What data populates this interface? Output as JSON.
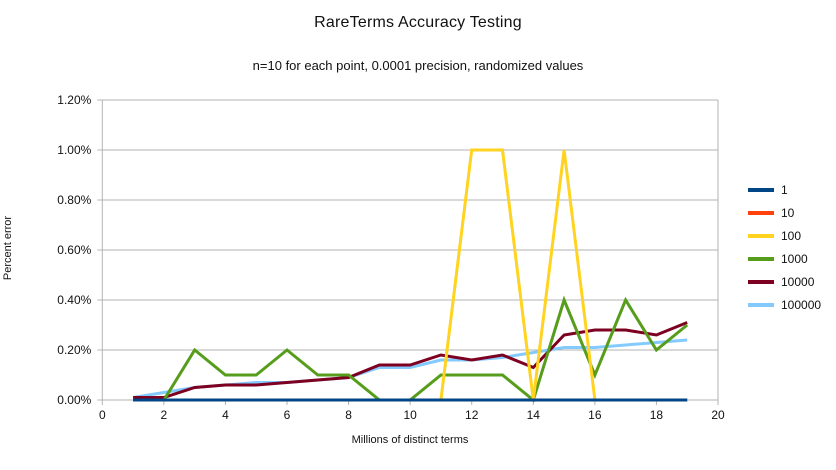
{
  "chart": {
    "title": "RareTerms Accuracy Testing",
    "subtitle": "n=10 for each point, 0.0001 precision, randomized values",
    "x_axis_title": "Millions of distinct terms",
    "y_axis_title": "Percent error"
  },
  "chart_data": {
    "type": "line",
    "title": "RareTerms Accuracy Testing",
    "subtitle": "n=10 for each point, 0.0001 precision, randomized values",
    "xlabel": "Millions of distinct terms",
    "ylabel": "Percent error",
    "xlim": [
      0,
      20
    ],
    "ylim_percent": [
      0,
      1.2
    ],
    "x_tick_labels": [
      0,
      2,
      4,
      6,
      8,
      10,
      12,
      14,
      16,
      18,
      20
    ],
    "y_tick_labels": [
      "0.00%",
      "0.20%",
      "0.40%",
      "0.60%",
      "0.80%",
      "1.00%",
      "1.20%"
    ],
    "y_tick_step_percent": 0.2,
    "grid": true,
    "legend_position": "right",
    "draw_order": "first-series-on-top",
    "x": [
      1,
      2,
      3,
      4,
      5,
      6,
      7,
      8,
      9,
      10,
      11,
      12,
      13,
      14,
      15,
      16,
      17,
      18,
      19
    ],
    "series": [
      {
        "name": "1",
        "color": "#004586",
        "values_percent": [
          0,
          0,
          0,
          0,
          0,
          0,
          0,
          0,
          0,
          0,
          0,
          0,
          0,
          0,
          0,
          0,
          0,
          0,
          0
        ]
      },
      {
        "name": "10",
        "color": "#FF420E",
        "values_percent": [
          0,
          0,
          0,
          0,
          0,
          0,
          0,
          0,
          0,
          0,
          0,
          0,
          0,
          0,
          0,
          0,
          0,
          0,
          0
        ]
      },
      {
        "name": "100",
        "color": "#FFD320",
        "values_percent": [
          0,
          0,
          0,
          0,
          0,
          0,
          0,
          0,
          0,
          0,
          0,
          1.0,
          1.0,
          0,
          1.0,
          0,
          0,
          0,
          0
        ]
      },
      {
        "name": "1000",
        "color": "#579D1C",
        "values_percent": [
          0,
          0,
          0.2,
          0.1,
          0.1,
          0.2,
          0.1,
          0.1,
          0,
          0,
          0.1,
          0.1,
          0.1,
          0,
          0.4,
          0.1,
          0.4,
          0.2,
          0.3
        ]
      },
      {
        "name": "10000",
        "color": "#7E0021",
        "values_percent": [
          0.01,
          0.01,
          0.05,
          0.06,
          0.06,
          0.07,
          0.08,
          0.09,
          0.14,
          0.14,
          0.18,
          0.16,
          0.18,
          0.13,
          0.26,
          0.28,
          0.28,
          0.26,
          0.31
        ]
      },
      {
        "name": "100000",
        "color": "#83CAFF",
        "values_percent": [
          0.01,
          0.03,
          0.05,
          0.06,
          0.07,
          0.07,
          0.08,
          0.09,
          0.13,
          0.13,
          0.16,
          0.16,
          0.17,
          0.19,
          0.21,
          0.21,
          0.22,
          0.23,
          0.24
        ]
      }
    ],
    "colors": {
      "background": "#ffffff",
      "gridline": "#b3b3b3",
      "axis": "#b3b3b3",
      "text": "#111111"
    }
  }
}
